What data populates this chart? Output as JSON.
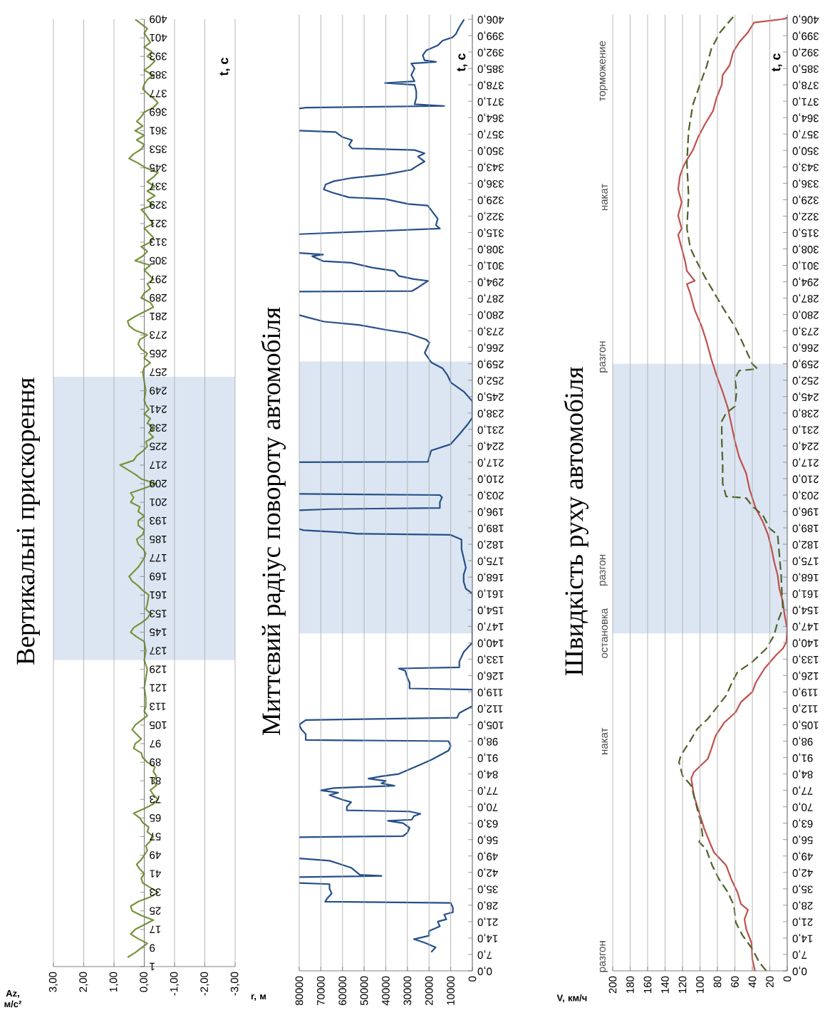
{
  "chart_data": [
    {
      "type": "line",
      "title": "Вертикальні прискорення",
      "xlabel": "Az, м/с²",
      "ylabel": "t, с",
      "color": "#77933c",
      "grid": "x",
      "values": [
        5,
        7,
        9,
        11,
        13,
        15,
        17,
        19,
        21,
        23,
        25,
        27,
        29,
        31,
        33,
        35,
        37,
        39,
        41,
        43,
        45,
        47,
        49,
        51,
        53,
        55,
        57,
        59,
        61,
        63,
        65,
        67,
        69,
        71,
        73,
        75,
        77,
        79,
        81,
        83,
        85,
        87,
        89,
        91,
        93,
        95,
        97,
        99,
        101,
        103,
        105,
        107,
        109,
        111,
        113,
        117,
        121,
        125,
        129,
        133,
        137,
        141,
        143,
        145,
        147,
        149,
        151,
        153,
        155,
        157,
        161,
        163,
        165,
        167,
        169,
        171,
        173,
        175,
        177,
        179,
        181,
        183,
        185,
        187,
        189,
        191,
        193,
        195,
        197,
        199,
        201,
        203,
        205,
        207,
        209,
        211,
        213,
        215,
        217,
        219,
        221,
        223,
        225,
        227,
        229,
        231,
        233,
        235,
        237,
        239,
        241,
        243,
        245,
        249,
        253,
        257,
        259,
        261,
        263,
        265,
        267,
        269,
        271,
        273,
        275,
        277,
        279,
        281,
        283,
        285,
        287,
        289,
        291,
        293,
        295,
        297,
        299,
        301,
        303,
        305,
        307,
        309,
        311,
        313,
        315,
        317,
        319,
        321,
        323,
        325,
        327,
        329,
        331,
        333,
        335,
        337,
        339,
        341,
        343,
        345,
        347,
        349,
        351,
        353,
        355,
        357,
        359,
        361,
        363,
        365,
        367,
        369,
        371,
        373,
        375,
        377,
        379,
        381,
        383,
        385,
        387,
        389,
        391,
        393,
        395,
        397,
        399,
        401,
        403,
        405,
        407,
        409
      ],
      "x": [
        0.55,
        0.3,
        0.1,
        -0.1,
        0.2,
        0.45,
        0.3,
        0.0,
        -0.3,
        0.1,
        0.4,
        0.45,
        0.2,
        -0.2,
        -0.45,
        -0.2,
        0.05,
        0.1,
        0.0,
        0.15,
        0.25,
        0.1,
        0.0,
        -0.1,
        -0.05,
        -0.2,
        -0.3,
        -0.1,
        -0.15,
        0.05,
        0.15,
        0.35,
        0.0,
        -0.3,
        -0.45,
        -0.3,
        -0.2,
        -0.4,
        -0.3,
        -0.4,
        -0.3,
        -0.35,
        -0.1,
        0.05,
        0.1,
        0.35,
        0.3,
        0.1,
        0.25,
        0.4,
        0.3,
        0.1,
        -0.1,
        0.0,
        -0.05,
        -0.05,
        0.0,
        -0.05,
        -0.1,
        0.0,
        -0.05,
        0.0,
        0.25,
        0.45,
        0.35,
        0.1,
        -0.1,
        -0.2,
        -0.05,
        -0.1,
        -0.15,
        0.05,
        0.2,
        0.4,
        0.5,
        0.35,
        0.2,
        0.1,
        0.0,
        -0.05,
        0.05,
        0.2,
        0.25,
        0.05,
        0.0,
        0.2,
        0.2,
        0.0,
        0.2,
        0.15,
        0.45,
        0.35,
        0.45,
        0.0,
        -0.4,
        0.1,
        0.3,
        0.55,
        0.8,
        0.35,
        0.25,
        0.05,
        -0.1,
        -0.05,
        -0.3,
        -0.15,
        -0.35,
        -0.1,
        -0.2,
        0.0,
        -0.15,
        -0.05,
        0.0,
        -0.05,
        0.0,
        0.05,
        0.0,
        -0.2,
        0.0,
        -0.1,
        0.1,
        0.2,
        0.15,
        -0.1,
        0.3,
        0.5,
        0.55,
        0.3,
        0.0,
        -0.3,
        -0.2,
        0.1,
        0.0,
        -0.2,
        -0.1,
        -0.3,
        -0.15,
        0.0,
        -0.2,
        0.3,
        0.05,
        -0.1,
        0.1,
        -0.2,
        -0.3,
        -0.15,
        0.0,
        -0.3,
        -0.15,
        -0.05,
        0.1,
        -0.3,
        -0.1,
        -0.35,
        -0.1,
        -0.35,
        -0.1,
        -0.3,
        -0.45,
        -0.05,
        0.2,
        0.5,
        0.35,
        0.1,
        0.0,
        0.25,
        0.0,
        0.3,
        0.05,
        0.25,
        0.1,
        0.0,
        -0.3,
        -0.45,
        -0.3,
        -0.1,
        0.05,
        0.0,
        -0.1,
        -0.3,
        0.0,
        -0.2,
        -0.35,
        -0.1,
        -0.25,
        0.0,
        -0.2,
        -0.1,
        0.0,
        -0.1,
        0.1,
        0.3
      ],
      "ylim": [
        1,
        409
      ],
      "yticks": [
        1,
        9,
        17,
        25,
        33,
        41,
        49,
        57,
        65,
        73,
        81,
        89,
        97,
        105,
        113,
        121,
        129,
        137,
        145,
        153,
        161,
        169,
        177,
        185,
        193,
        201,
        209,
        217,
        225,
        233,
        241,
        249,
        257,
        265,
        273,
        281,
        289,
        297,
        305,
        313,
        321,
        329,
        337,
        345,
        353,
        361,
        369,
        377,
        385,
        393,
        401,
        409
      ],
      "xlim": [
        3,
        -3
      ],
      "xticks": [
        {
          "value": 3,
          "label": "3,00"
        },
        {
          "value": 2,
          "label": "2,00"
        },
        {
          "value": 1,
          "label": "1,00"
        },
        {
          "value": 0,
          "label": "0,00"
        },
        {
          "value": -1,
          "label": "-1,00"
        },
        {
          "value": -2,
          "label": "-2,00"
        },
        {
          "value": -3,
          "label": "-3,00"
        }
      ],
      "bands": [
        {
          "axis": "y",
          "from": 133,
          "to": 255,
          "color": "#dce6f2"
        }
      ]
    },
    {
      "type": "line",
      "title": "Миттєвий радіус повороту автомобіля",
      "xlabel": "r, м",
      "ylabel": "t, с",
      "color": "#254f8a",
      "grid": "x",
      "values": [
        8,
        10,
        12,
        13.5,
        15,
        17,
        19,
        21,
        22,
        24,
        25,
        27,
        29,
        29.5,
        31,
        33,
        35,
        37,
        37.5,
        null,
        40,
        40.5,
        41,
        42.5,
        44,
        45.5,
        47,
        48,
        null,
        57,
        57.5,
        59,
        61,
        63,
        64,
        64.5,
        66,
        67,
        68,
        68.5,
        70,
        72,
        73,
        74,
        75,
        76,
        77,
        78,
        79,
        80,
        81,
        82,
        83,
        84,
        86,
        88,
        90,
        92,
        94,
        96,
        98,
        98.5,
        101,
        103,
        105,
        107,
        108,
        110,
        112,
        113,
        120,
        120.5,
        123,
        125,
        128,
        129,
        129.5,
        132,
        136,
        139,
        140,
        161,
        163,
        166,
        169,
        172,
        176,
        180,
        184,
        186,
        186.5,
        187,
        188,
        188.5,
        null,
        196.5,
        197,
        197.5,
        200,
        202,
        203,
        203.5,
        null,
        217,
        217.2,
        219,
        222,
        224.7,
        228.9,
        233,
        236,
        243,
        247,
        251,
        254,
        257,
        259.6,
        263.7,
        268,
        269.3,
        272,
        273.5,
        275.6,
        277,
        279,
        279.8,
        null,
        289.8,
        290,
        291.6,
        294.4,
        295.1,
        296.5,
        298.6,
        300,
        302.1,
        302.8,
        304.9,
        305.6,
        306.3,
        null,
        314.3,
        314.6,
        316.7,
        318.1,
        320.9,
        323.7,
        326.5,
        327.2,
        329.3,
        330,
        332.1,
        333.4,
        335.5,
        336.9,
        338.3,
        339.7,
        341.8,
        343.2,
        345.3,
        347.4,
        348.8,
        350.2,
        350.9,
        352.3,
        354.4,
        355.8,
        357.9,
        358.5,
        null,
        367.9,
        368.3,
        369,
        369.7,
        372.5,
        375.3,
        378,
        378.8,
        379.5,
        382.2,
        385,
        387.1,
        387.8,
        388.5,
        390.6,
        392.7,
        394.8,
        396.9,
        398.3,
        399.7,
        402.5,
        405.9
      ],
      "x": [
        19000,
        17000,
        22000,
        27000,
        20000,
        20000,
        15000,
        16000,
        12000,
        13000,
        9000,
        9000,
        10000,
        68000,
        67000,
        65000,
        66000,
        66000,
        80000,
        null,
        80000,
        42000,
        52000,
        54000,
        56000,
        61000,
        66000,
        80000,
        null,
        80000,
        32000,
        30000,
        29000,
        32000,
        39000,
        28000,
        27000,
        24000,
        29000,
        58000,
        58000,
        56000,
        60000,
        63000,
        66000,
        62000,
        70000,
        64000,
        36000,
        42000,
        40000,
        48000,
        42000,
        34000,
        29000,
        24000,
        19000,
        15000,
        11000,
        10000,
        11000,
        77000,
        77000,
        79000,
        80000,
        77000,
        7000,
        6000,
        2000,
        0,
        0,
        29000,
        29000,
        30000,
        31000,
        34000,
        6000,
        6000,
        4000,
        1000,
        0,
        0,
        3000,
        4000,
        4000,
        3000,
        4000,
        5000,
        5000,
        10000,
        53000,
        59000,
        78000,
        80000,
        null,
        80000,
        66000,
        15000,
        15000,
        14000,
        15000,
        80000,
        null,
        80000,
        20500,
        20000,
        19000,
        10000,
        6000,
        2300,
        0,
        0,
        3800,
        9900,
        11400,
        13700,
        19000,
        22000,
        19800,
        21300,
        29700,
        40000,
        52600,
        68600,
        77000,
        80000,
        null,
        80000,
        28000,
        25000,
        20500,
        27000,
        34000,
        36000,
        46000,
        56000,
        69000,
        74000,
        69000,
        80000,
        null,
        80000,
        72000,
        15000,
        16800,
        16000,
        18300,
        20600,
        29700,
        40400,
        57000,
        64800,
        68600,
        67800,
        64000,
        55600,
        40400,
        28200,
        25900,
        22100,
        25100,
        22100,
        26700,
        55600,
        57000,
        55600,
        60200,
        63200,
        80000,
        null,
        80000,
        77000,
        13000,
        26700,
        25900,
        25900,
        26700,
        40400,
        26700,
        28200,
        26700,
        28200,
        16800,
        22100,
        22900,
        21300,
        16000,
        13700,
        9100,
        7600,
        6100,
        3800
      ],
      "ylim": [
        0,
        408
      ],
      "yticks": [
        {
          "value": 0,
          "label": "0,0"
        },
        {
          "value": 7,
          "label": "7,0"
        },
        {
          "value": 14,
          "label": "14,0"
        },
        {
          "value": 21,
          "label": "21,0"
        },
        {
          "value": 28,
          "label": "28,0"
        },
        {
          "value": 35,
          "label": "35,0"
        },
        {
          "value": 42,
          "label": "42,0"
        },
        {
          "value": 49,
          "label": "49,0"
        },
        {
          "value": 56,
          "label": "56,0"
        },
        {
          "value": 63,
          "label": "63,0"
        },
        {
          "value": 70,
          "label": "70,0"
        },
        {
          "value": 77,
          "label": "77,0"
        },
        {
          "value": 84,
          "label": "84,0"
        },
        {
          "value": 91,
          "label": "91,0"
        },
        {
          "value": 98,
          "label": "98,0"
        },
        {
          "value": 105,
          "label": "105,0"
        },
        {
          "value": 112,
          "label": "112,0"
        },
        {
          "value": 119,
          "label": "119,0"
        },
        {
          "value": 126,
          "label": "126,0"
        },
        {
          "value": 133,
          "label": "133,0"
        },
        {
          "value": 140,
          "label": "140,0"
        },
        {
          "value": 147,
          "label": "147,0"
        },
        {
          "value": 154,
          "label": "154,0"
        },
        {
          "value": 161,
          "label": "161,0"
        },
        {
          "value": 168,
          "label": "168,0"
        },
        {
          "value": 175,
          "label": "175,0"
        },
        {
          "value": 182,
          "label": "182,0"
        },
        {
          "value": 189,
          "label": "189,0"
        },
        {
          "value": 196,
          "label": "196,0"
        },
        {
          "value": 203,
          "label": "203,0"
        },
        {
          "value": 210,
          "label": "210,0"
        },
        {
          "value": 217,
          "label": "217,0"
        },
        {
          "value": 224,
          "label": "224,0"
        },
        {
          "value": 231,
          "label": "231,0"
        },
        {
          "value": 238,
          "label": "238,0"
        },
        {
          "value": 245,
          "label": "245,0"
        },
        {
          "value": 252,
          "label": "252,0"
        },
        {
          "value": 259,
          "label": "259,0"
        },
        {
          "value": 266,
          "label": "266,0"
        },
        {
          "value": 273,
          "label": "273,0"
        },
        {
          "value": 280,
          "label": "280,0"
        },
        {
          "value": 287,
          "label": "287,0"
        },
        {
          "value": 294,
          "label": "294,0"
        },
        {
          "value": 301,
          "label": "301,0"
        },
        {
          "value": 308,
          "label": "308,0"
        },
        {
          "value": 315,
          "label": "315,0"
        },
        {
          "value": 322,
          "label": "322,0"
        },
        {
          "value": 329,
          "label": "329,0"
        },
        {
          "value": 336,
          "label": "336,0"
        },
        {
          "value": 343,
          "label": "343,0"
        },
        {
          "value": 350,
          "label": "350,0"
        },
        {
          "value": 357,
          "label": "357,0"
        },
        {
          "value": 364,
          "label": "364,0"
        },
        {
          "value": 371,
          "label": "371,0"
        },
        {
          "value": 378,
          "label": "378,0"
        },
        {
          "value": 385,
          "label": "385,0"
        },
        {
          "value": 392,
          "label": "392,0"
        },
        {
          "value": 399,
          "label": "399,0"
        },
        {
          "value": 406,
          "label": "406,0"
        }
      ],
      "xlim": [
        80000,
        0
      ],
      "xticks": [
        0,
        10000,
        20000,
        30000,
        40000,
        50000,
        60000,
        70000,
        80000
      ],
      "bands": [
        {
          "axis": "y",
          "from": 144,
          "to": 260,
          "color": "#dce6f2"
        }
      ]
    },
    {
      "type": "line",
      "title": "Швидкість руху автомобіля",
      "xlabel": "V, км/ч",
      "ylabel": "t, с",
      "grid": "x",
      "series": [
        {
          "color": "#c0504d",
          "values": [
            0,
            5,
            12,
            17.8,
            22,
            26,
            28.5,
            33.5,
            39,
            45,
            50.6,
            55,
            60.5,
            67.7,
            74.8,
            82,
            84.8,
            90.5,
            94.7,
            100.4,
            106,
            110.4,
            114.7,
            119,
            123,
            129,
            134.6,
            137.5,
            140.3,
            146,
            151.7,
            157.4,
            163,
            168.8,
            174.5,
            180.2,
            186,
            191.6,
            197.3,
            205.2,
            212.2,
            219.1,
            226.1,
            233.1,
            240.1,
            247,
            254,
            261,
            267.9,
            274.9,
            281.9,
            288.8,
            293,
            294.4,
            298.6,
            302.8,
            308.4,
            314,
            316.7,
            322.3,
            327.9,
            333.5,
            339,
            343.2,
            346,
            350.2,
            355.8,
            361.4,
            366.9,
            372.5,
            378.1,
            382.2,
            386.4,
            392,
            396.2,
            400.4,
            404.6,
            406,
            406.7
          ],
          "x": [
            37,
            40,
            41,
            47,
            49,
            45,
            53,
            57,
            64,
            70,
            84,
            89,
            95,
            101,
            107,
            110,
            107,
            91,
            87,
            82,
            72,
            59,
            53,
            40,
            36,
            26,
            13,
            5,
            1,
            0,
            3,
            5,
            9,
            11,
            15,
            18,
            22,
            28,
            36,
            43,
            47,
            55,
            60,
            64,
            68,
            74,
            81,
            87,
            92,
            98,
            106,
            111,
            115,
            106,
            115,
            117,
            121,
            125,
            121,
            125,
            121,
            125,
            123,
            119,
            115,
            108,
            102,
            94,
            85,
            81,
            75,
            74,
            66,
            62,
            55,
            45,
            38,
            6,
            0
          ]
        },
        {
          "color": "#4f6228",
          "line_style": "dashed",
          "values": [
            0,
            3.6,
            9.3,
            15,
            20.7,
            27.8,
            33.5,
            39,
            45,
            52,
            55,
            57.7,
            63.4,
            69,
            74.8,
            79,
            83.3,
            89,
            91.9,
            97.6,
            103.3,
            107.5,
            111.8,
            117.5,
            123.2,
            127.5,
            131.8,
            137.5,
            143.2,
            148.9,
            154.6,
            160.3,
            168.8,
            177.4,
            186,
            188.7,
            194.4,
            198.2,
            201.7,
            202.4,
            208,
            216.4,
            226.1,
            234.5,
            238,
            240.8,
            247,
            252.6,
            256.1,
            256.8,
            258.9,
            267.9,
            274.9,
            281.9,
            288.8,
            295.8,
            302.8,
            308.4,
            316.7,
            330.7,
            344.6,
            358.5,
            369.7,
            378.1,
            386.4,
            393.4,
            400.4,
            407
          ],
          "x": [
            24,
            32,
            40,
            51,
            59,
            61,
            68,
            78,
            86,
            93,
            101,
            97,
            99,
            103,
            107,
            110,
            120,
            124,
            122,
            112,
            103,
            91,
            82,
            70,
            63,
            57,
            40,
            24,
            15,
            11,
            5,
            6,
            7,
            9,
            11,
            20,
            28,
            40,
            47,
            70,
            74,
            74,
            75,
            75,
            70,
            60,
            58,
            60,
            55,
            34,
            40,
            51,
            60,
            72,
            83,
            94,
            104,
            111,
            115,
            113,
            115,
            113,
            108,
            100,
            92,
            87,
            77,
            62
          ]
        }
      ],
      "ylim": [
        0,
        408
      ],
      "yticks": [
        {
          "value": 0,
          "label": "0,0"
        },
        {
          "value": 7,
          "label": "7,0"
        },
        {
          "value": 14,
          "label": "14,0"
        },
        {
          "value": 21,
          "label": "21,0"
        },
        {
          "value": 28,
          "label": "28,0"
        },
        {
          "value": 35,
          "label": "35,0"
        },
        {
          "value": 42,
          "label": "42,0"
        },
        {
          "value": 49,
          "label": "49,0"
        },
        {
          "value": 56,
          "label": "56,0"
        },
        {
          "value": 63,
          "label": "63,0"
        },
        {
          "value": 70,
          "label": "70,0"
        },
        {
          "value": 77,
          "label": "77,0"
        },
        {
          "value": 84,
          "label": "84,0"
        },
        {
          "value": 91,
          "label": "91,0"
        },
        {
          "value": 98,
          "label": "98,0"
        },
        {
          "value": 105,
          "label": "105,0"
        },
        {
          "value": 112,
          "label": "112,0"
        },
        {
          "value": 119,
          "label": "119,0"
        },
        {
          "value": 126,
          "label": "126,0"
        },
        {
          "value": 133,
          "label": "133,0"
        },
        {
          "value": 140,
          "label": "140,0"
        },
        {
          "value": 147,
          "label": "147,0"
        },
        {
          "value": 154,
          "label": "154,0"
        },
        {
          "value": 161,
          "label": "161,0"
        },
        {
          "value": 168,
          "label": "168,0"
        },
        {
          "value": 175,
          "label": "175,0"
        },
        {
          "value": 182,
          "label": "182,0"
        },
        {
          "value": 189,
          "label": "189,0"
        },
        {
          "value": 196,
          "label": "196,0"
        },
        {
          "value": 203,
          "label": "203,0"
        },
        {
          "value": 210,
          "label": "210,0"
        },
        {
          "value": 217,
          "label": "217,0"
        },
        {
          "value": 224,
          "label": "224,0"
        },
        {
          "value": 231,
          "label": "231,0"
        },
        {
          "value": 238,
          "label": "238,0"
        },
        {
          "value": 245,
          "label": "245,0"
        },
        {
          "value": 252,
          "label": "252,0"
        },
        {
          "value": 259,
          "label": "259,0"
        },
        {
          "value": 266,
          "label": "266,0"
        },
        {
          "value": 273,
          "label": "273,0"
        },
        {
          "value": 280,
          "label": "280,0"
        },
        {
          "value": 287,
          "label": "287,0"
        },
        {
          "value": 294,
          "label": "294,0"
        },
        {
          "value": 301,
          "label": "301,0"
        },
        {
          "value": 308,
          "label": "308,0"
        },
        {
          "value": 315,
          "label": "315,0"
        },
        {
          "value": 322,
          "label": "322,0"
        },
        {
          "value": 329,
          "label": "329,0"
        },
        {
          "value": 336,
          "label": "336,0"
        },
        {
          "value": 343,
          "label": "343,0"
        },
        {
          "value": 350,
          "label": "350,0"
        },
        {
          "value": 357,
          "label": "357,0"
        },
        {
          "value": 364,
          "label": "364,0"
        },
        {
          "value": 371,
          "label": "371,0"
        },
        {
          "value": 378,
          "label": "378,0"
        },
        {
          "value": 385,
          "label": "385,0"
        },
        {
          "value": 392,
          "label": "392,0"
        },
        {
          "value": 399,
          "label": "399,0"
        },
        {
          "value": 406,
          "label": "406,0"
        }
      ],
      "xlim": [
        200,
        0
      ],
      "xticks": [
        0,
        20,
        40,
        60,
        80,
        100,
        120,
        140,
        160,
        180,
        200
      ],
      "bands": [
        {
          "axis": "y",
          "from": 144,
          "to": 259,
          "color": "#dce6f2"
        }
      ],
      "annotations": [
        "разгон",
        "накат",
        "остановка",
        "разгон",
        "разгон",
        "накат",
        "торможение"
      ]
    }
  ]
}
